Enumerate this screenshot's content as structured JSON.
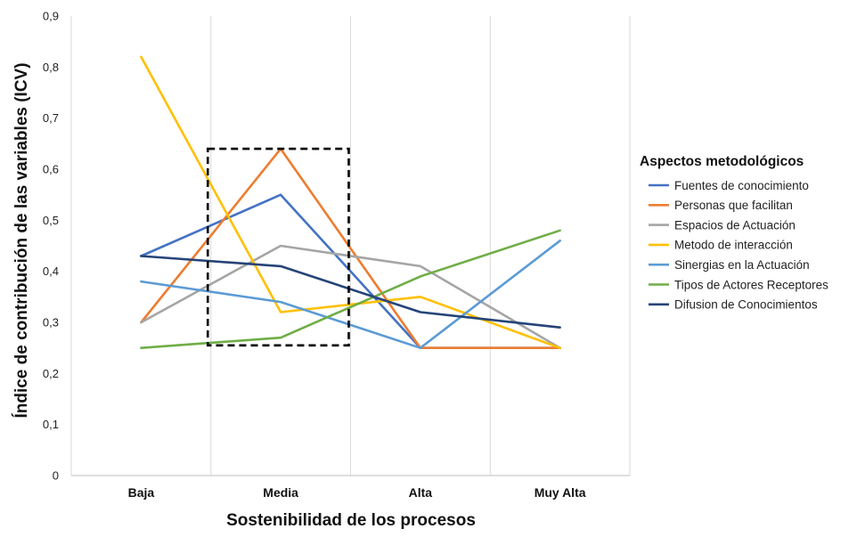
{
  "chart_data": {
    "type": "line",
    "xlabel": "Sostenibilidad de los procesos",
    "ylabel": "Índice de contribución de las variables (ICV)",
    "categories": [
      "Baja",
      "Media",
      "Alta",
      "Muy Alta"
    ],
    "ylim": [
      0,
      0.9
    ],
    "yticks": [
      "0",
      "0,1",
      "0,2",
      "0,3",
      "0,4",
      "0,5",
      "0,6",
      "0,7",
      "0,8",
      "0,9"
    ],
    "grid": "vertical",
    "legend": {
      "title": "Aspectos metodológicos",
      "placement": "right"
    },
    "series": [
      {
        "name": "Fuentes de conocimiento",
        "color": "#4472c4",
        "values": [
          0.43,
          0.55,
          0.25,
          0.25
        ]
      },
      {
        "name": "Personas que facilitan",
        "color": "#ed7d31",
        "values": [
          0.3,
          0.64,
          0.25,
          0.25
        ]
      },
      {
        "name": "Espacios de Actuación",
        "color": "#a5a5a5",
        "values": [
          0.3,
          0.45,
          0.41,
          0.25
        ]
      },
      {
        "name": "Metodo de interacción",
        "color": "#ffc000",
        "values": [
          0.82,
          0.32,
          0.35,
          0.25
        ]
      },
      {
        "name": "Sinergias en la Actuación",
        "color": "#5b9bd5",
        "values": [
          0.38,
          0.34,
          0.25,
          0.46
        ]
      },
      {
        "name": "Tipos de Actores Receptores",
        "color": "#70ad47",
        "values": [
          0.25,
          0.27,
          0.39,
          0.48
        ]
      },
      {
        "name": "Difusion de Conocimientos",
        "color": "#264478",
        "values": [
          0.43,
          0.41,
          0.32,
          0.29
        ]
      }
    ],
    "annotation": {
      "type": "dashed-box",
      "category": "Media",
      "yrange": [
        0.255,
        0.64
      ]
    }
  }
}
